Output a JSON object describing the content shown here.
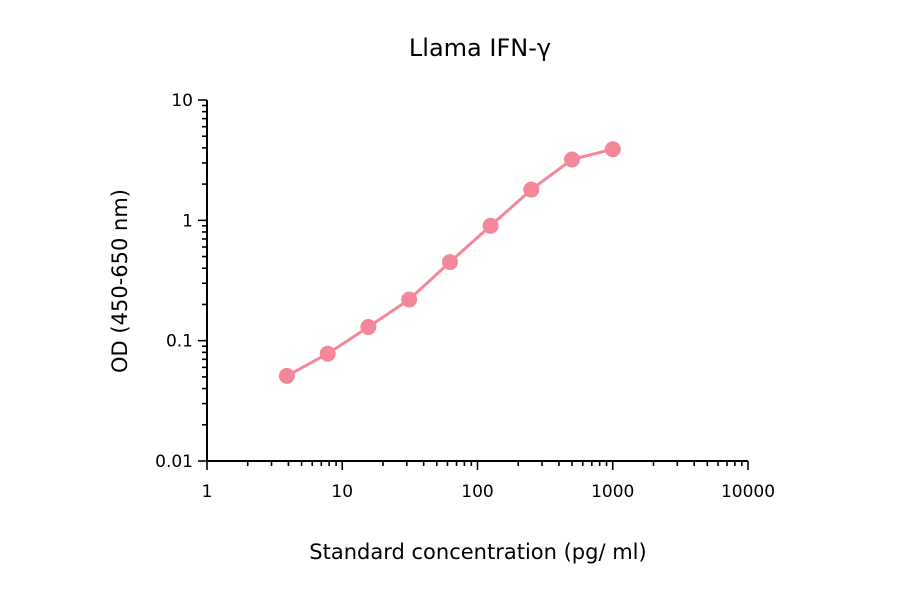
{
  "chart_data": {
    "type": "line",
    "title": "Llama IFN-γ",
    "xlabel": "Standard concentration (pg/ ml)",
    "ylabel": "OD (450-650 nm)",
    "x_scale": "log",
    "y_scale": "log",
    "xlim": [
      1,
      10000
    ],
    "ylim": [
      0.01,
      10
    ],
    "x_ticks": [
      1,
      10,
      100,
      1000,
      10000
    ],
    "x_tick_labels": [
      "1",
      "10",
      "100",
      "1000",
      "10000"
    ],
    "y_ticks": [
      0.01,
      0.1,
      1,
      10
    ],
    "y_tick_labels": [
      "0.01",
      "0.1",
      "1",
      "10"
    ],
    "grid": false,
    "series": [
      {
        "color": "#f4879a",
        "x": [
          3.9,
          7.8,
          15.6,
          31.25,
          62.5,
          125,
          250,
          500,
          1000
        ],
        "y": [
          0.051,
          0.078,
          0.13,
          0.22,
          0.45,
          0.9,
          1.8,
          3.2,
          3.9
        ]
      }
    ]
  }
}
